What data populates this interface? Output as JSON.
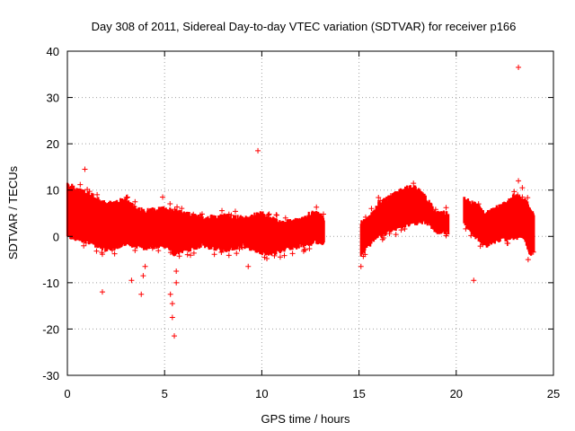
{
  "chart_data": {
    "type": "scatter",
    "title": "Day 308 of 2011, Sidereal Day-to-day VTEC variation (SDTVAR) for receiver p166",
    "xlabel": "GPS time / hours",
    "ylabel": "SDTVAR / TECUs",
    "xlim": [
      0,
      25
    ],
    "ylim": [
      -30,
      40
    ],
    "x_ticks": [
      0,
      5,
      10,
      15,
      20,
      25
    ],
    "x_tick_labels": [
      "0",
      "5",
      "10",
      "15",
      "20",
      "25"
    ],
    "y_ticks": [
      -30,
      -20,
      -10,
      0,
      10,
      20,
      30,
      40
    ],
    "y_tick_labels": [
      "-30",
      "-20",
      "-10",
      "0",
      "10",
      "20",
      "30",
      "40"
    ],
    "grid": true,
    "grid_style": "dotted",
    "marker": "+",
    "color": "#ff0000",
    "segments": [
      {
        "name": "arc 0–13.2 h",
        "x_start": 0.0,
        "x_end": 13.2,
        "lower": [
          [
            0,
            0
          ],
          [
            1,
            -1
          ],
          [
            2,
            -3
          ],
          [
            3,
            -1.5
          ],
          [
            4,
            -2.5
          ],
          [
            5,
            -2
          ],
          [
            5.5,
            -4
          ],
          [
            6,
            -3
          ],
          [
            7,
            -2
          ],
          [
            8,
            -3
          ],
          [
            9,
            -2
          ],
          [
            10,
            -3.5
          ],
          [
            10.5,
            -4
          ],
          [
            11,
            -3
          ],
          [
            12,
            -2
          ],
          [
            13,
            -1
          ],
          [
            13.2,
            -1.5
          ]
        ],
        "upper": [
          [
            0,
            11.5
          ],
          [
            0.5,
            10
          ],
          [
            1,
            9.5
          ],
          [
            2,
            7
          ],
          [
            3,
            8
          ],
          [
            3.5,
            6
          ],
          [
            4,
            5.5
          ],
          [
            5,
            6
          ],
          [
            6,
            5
          ],
          [
            7,
            4
          ],
          [
            8,
            4.5
          ],
          [
            9,
            4
          ],
          [
            10,
            5
          ],
          [
            11,
            3
          ],
          [
            12,
            3.5
          ],
          [
            12.5,
            5
          ],
          [
            13,
            5
          ],
          [
            13.2,
            4
          ]
        ]
      },
      {
        "name": "arc 15.1–19.6 h",
        "x_start": 15.1,
        "x_end": 19.6,
        "lower": [
          [
            15.1,
            -4
          ],
          [
            15.5,
            -2
          ],
          [
            16,
            0
          ],
          [
            17,
            2
          ],
          [
            18,
            3
          ],
          [
            18.5,
            3
          ],
          [
            19,
            1
          ],
          [
            19.6,
            1
          ]
        ],
        "upper": [
          [
            15.1,
            3
          ],
          [
            15.5,
            4
          ],
          [
            16,
            7
          ],
          [
            17,
            9.5
          ],
          [
            17.5,
            10.5
          ],
          [
            18,
            10.5
          ],
          [
            18.5,
            8
          ],
          [
            19,
            5
          ],
          [
            19.6,
            5
          ]
        ]
      },
      {
        "name": "arc 20.4–24 h",
        "x_start": 20.4,
        "x_end": 24.0,
        "lower": [
          [
            20.4,
            3
          ],
          [
            21,
            0
          ],
          [
            21.5,
            -2
          ],
          [
            22,
            -1
          ],
          [
            22.5,
            -0.5
          ],
          [
            23,
            -0.5
          ],
          [
            23.5,
            0
          ],
          [
            23.8,
            -4
          ],
          [
            24,
            -3
          ]
        ],
        "upper": [
          [
            20.4,
            8
          ],
          [
            21,
            7
          ],
          [
            21.5,
            5
          ],
          [
            22,
            6
          ],
          [
            22.5,
            7
          ],
          [
            23,
            9
          ],
          [
            23.5,
            8
          ],
          [
            24,
            5
          ]
        ]
      }
    ],
    "outliers": [
      {
        "x": 0.9,
        "y": 14.5
      },
      {
        "x": 1.8,
        "y": -12
      },
      {
        "x": 3.3,
        "y": -9.5
      },
      {
        "x": 3.8,
        "y": -12.5
      },
      {
        "x": 3.9,
        "y": -8.5
      },
      {
        "x": 4.0,
        "y": -6.5
      },
      {
        "x": 4.9,
        "y": 8.5
      },
      {
        "x": 5.3,
        "y": -12.5
      },
      {
        "x": 5.4,
        "y": -14.5
      },
      {
        "x": 5.4,
        "y": -17.5
      },
      {
        "x": 5.5,
        "y": -21.5
      },
      {
        "x": 5.6,
        "y": -10
      },
      {
        "x": 5.6,
        "y": -7.5
      },
      {
        "x": 9.3,
        "y": -6.5
      },
      {
        "x": 9.8,
        "y": 18.5
      },
      {
        "x": 15.1,
        "y": -6.5
      },
      {
        "x": 20.9,
        "y": -9.5
      },
      {
        "x": 23.2,
        "y": 36.5
      },
      {
        "x": 23.2,
        "y": 12
      },
      {
        "x": 23.4,
        "y": 10.5
      },
      {
        "x": 23.7,
        "y": -5
      }
    ]
  }
}
